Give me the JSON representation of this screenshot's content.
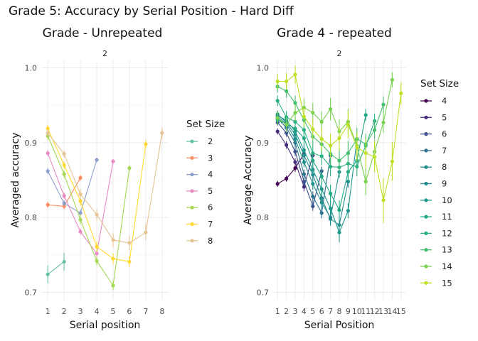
{
  "title": "Grade 5: Accuracy by Serial Position - Hard Diff",
  "chart_data": [
    {
      "type": "line",
      "title": "Grade - Unrepeated",
      "facet_label": "2",
      "xlabel": "Serial position",
      "ylabel": "Averaged accuracy",
      "xlim": [
        0.6,
        8.4
      ],
      "ylim": [
        0.69,
        1.01
      ],
      "x_ticks": [
        "1",
        "2",
        "3",
        "4",
        "5",
        "6",
        "7",
        "8"
      ],
      "y_ticks": [
        "0.7",
        "0.8",
        "0.9",
        "1.0"
      ],
      "legend_title": "Set Size",
      "series": [
        {
          "name": "2",
          "color": "#66c2a5",
          "x": [
            1,
            2
          ],
          "y": [
            0.724,
            0.741
          ],
          "err": [
            0.012,
            0.012
          ]
        },
        {
          "name": "3",
          "color": "#fc8d62",
          "x": [
            1,
            2,
            3
          ],
          "y": [
            0.817,
            0.815,
            0.853
          ],
          "err": [
            0.004,
            0.004,
            0.004
          ]
        },
        {
          "name": "4",
          "color": "#8da0cb",
          "x": [
            1,
            2,
            3,
            4
          ],
          "y": [
            0.862,
            0.819,
            0.806,
            0.877
          ],
          "err": [
            0.004,
            0.004,
            0.004,
            0.003
          ]
        },
        {
          "name": "5",
          "color": "#e78ac3",
          "x": [
            1,
            2,
            3,
            4,
            5
          ],
          "y": [
            0.886,
            0.829,
            0.781,
            0.752,
            0.875
          ],
          "err": [
            0.004,
            0.004,
            0.004,
            0.004,
            0.003
          ]
        },
        {
          "name": "6",
          "color": "#a6d854",
          "x": [
            1,
            2,
            3,
            4,
            5,
            6
          ],
          "y": [
            0.909,
            0.858,
            0.797,
            0.742,
            0.709,
            0.866
          ],
          "err": [
            0.005,
            0.005,
            0.006,
            0.006,
            0.006,
            0.004
          ]
        },
        {
          "name": "7",
          "color": "#ffd92f",
          "x": [
            1,
            2,
            3,
            4,
            5,
            6,
            7
          ],
          "y": [
            0.919,
            0.87,
            0.822,
            0.761,
            0.745,
            0.741,
            0.898
          ],
          "err": [
            0.005,
            0.005,
            0.006,
            0.007,
            0.007,
            0.007,
            0.005
          ]
        },
        {
          "name": "8",
          "color": "#e5c494",
          "x": [
            1,
            2,
            3,
            4,
            5,
            6,
            7,
            8
          ],
          "y": [
            0.913,
            0.885,
            0.831,
            0.804,
            0.77,
            0.766,
            0.78,
            0.913
          ],
          "err": [
            0.005,
            0.005,
            0.007,
            0.008,
            0.009,
            0.01,
            0.01,
            0.007
          ]
        }
      ]
    },
    {
      "type": "line",
      "title": "Grade 4 - repeated",
      "facet_label": "2",
      "xlabel": "Serial Position",
      "ylabel": "Average Accuracy",
      "xlim": [
        0.5,
        15.5
      ],
      "ylim": [
        0.69,
        1.01
      ],
      "x_ticks": [
        "1",
        "2",
        "3",
        "4",
        "5",
        "6",
        "7",
        "8",
        "9",
        "10",
        "11",
        "12",
        "13",
        "14",
        "15"
      ],
      "y_ticks": [
        "0.7",
        "0.8",
        "0.9",
        "1.0"
      ],
      "legend_title": "Set Size",
      "series": [
        {
          "name": "4",
          "color": "#440154",
          "x": [
            1,
            2,
            3,
            4
          ],
          "y": [
            0.845,
            0.852,
            0.866,
            0.885
          ],
          "err": [
            0.004,
            0.004,
            0.005,
            0.005
          ]
        },
        {
          "name": "5",
          "color": "#472d7b",
          "x": [
            1,
            2,
            3,
            4,
            5
          ],
          "y": [
            0.915,
            0.897,
            0.874,
            0.841,
            0.883
          ],
          "err": [
            0.004,
            0.005,
            0.005,
            0.006,
            0.005
          ]
        },
        {
          "name": "6",
          "color": "#3b518b",
          "x": [
            1,
            2,
            3,
            4,
            5,
            6
          ],
          "y": [
            0.927,
            0.913,
            0.888,
            0.848,
            0.815,
            0.862
          ],
          "err": [
            0.004,
            0.005,
            0.006,
            0.006,
            0.006,
            0.006
          ]
        },
        {
          "name": "7",
          "color": "#2c718e",
          "x": [
            1,
            2,
            3,
            4,
            5,
            6,
            7
          ],
          "y": [
            0.932,
            0.92,
            0.9,
            0.858,
            0.828,
            0.806,
            0.883
          ],
          "err": [
            0.005,
            0.006,
            0.006,
            0.006,
            0.007,
            0.007,
            0.006
          ]
        },
        {
          "name": "8",
          "color": "#21908d",
          "x": [
            1,
            2,
            3,
            4,
            5,
            6,
            7,
            8
          ],
          "y": [
            0.935,
            0.925,
            0.905,
            0.874,
            0.845,
            0.82,
            0.8,
            0.861
          ],
          "err": [
            0.005,
            0.006,
            0.006,
            0.007,
            0.008,
            0.008,
            0.008,
            0.007
          ]
        },
        {
          "name": "9",
          "color": "#238a8d",
          "x": [
            1,
            2,
            3,
            4,
            5,
            6,
            7,
            8,
            9
          ],
          "y": [
            0.938,
            0.927,
            0.911,
            0.883,
            0.857,
            0.826,
            0.798,
            0.79,
            0.848
          ],
          "err": [
            0.005,
            0.006,
            0.007,
            0.007,
            0.008,
            0.009,
            0.009,
            0.01,
            0.008
          ]
        },
        {
          "name": "10",
          "color": "#1f988b",
          "x": [
            1,
            2,
            3,
            4,
            5,
            6,
            7,
            8,
            9,
            10
          ],
          "y": [
            0.936,
            0.93,
            0.915,
            0.89,
            0.864,
            0.838,
            0.812,
            0.78,
            0.809,
            0.905
          ],
          "err": [
            0.006,
            0.007,
            0.007,
            0.008,
            0.009,
            0.01,
            0.01,
            0.013,
            0.01,
            0.009
          ]
        },
        {
          "name": "11",
          "color": "#22a884",
          "x": [
            1,
            2,
            3,
            4,
            5,
            6,
            7,
            8,
            9,
            10,
            11
          ],
          "y": [
            0.93,
            0.925,
            0.919,
            0.906,
            0.876,
            0.855,
            0.832,
            0.81,
            0.861,
            0.876,
            0.937
          ],
          "err": [
            0.006,
            0.007,
            0.008,
            0.009,
            0.01,
            0.011,
            0.012,
            0.013,
            0.012,
            0.011,
            0.008
          ]
        },
        {
          "name": "12",
          "color": "#2ab07f",
          "x": [
            1,
            2,
            3,
            4,
            5,
            6,
            7,
            8,
            9,
            10,
            11,
            12
          ],
          "y": [
            0.956,
            0.934,
            0.928,
            0.917,
            0.886,
            0.882,
            0.868,
            0.867,
            0.872,
            0.868,
            0.896,
            0.929
          ],
          "err": [
            0.007,
            0.008,
            0.009,
            0.01,
            0.011,
            0.012,
            0.013,
            0.014,
            0.014,
            0.013,
            0.011,
            0.01
          ]
        },
        {
          "name": "13",
          "color": "#44bf70",
          "x": [
            1,
            2,
            3,
            4,
            5,
            6,
            7,
            8,
            9,
            10,
            11,
            12,
            13
          ],
          "y": [
            0.975,
            0.969,
            0.953,
            0.93,
            0.908,
            0.898,
            0.885,
            0.876,
            0.886,
            0.905,
            0.898,
            0.917,
            0.951
          ],
          "err": [
            0.008,
            0.009,
            0.01,
            0.011,
            0.012,
            0.013,
            0.014,
            0.015,
            0.016,
            0.015,
            0.014,
            0.012,
            0.011
          ]
        },
        {
          "name": "14",
          "color": "#7ad151",
          "x": [
            1,
            2,
            3,
            4,
            5,
            6,
            7,
            8,
            9,
            10,
            11,
            12,
            13,
            14
          ],
          "y": [
            0.933,
            0.924,
            0.94,
            0.947,
            0.94,
            0.928,
            0.945,
            0.915,
            0.928,
            0.896,
            0.848,
            0.888,
            0.927,
            0.984
          ],
          "err": [
            0.009,
            0.01,
            0.011,
            0.012,
            0.013,
            0.014,
            0.015,
            0.016,
            0.017,
            0.018,
            0.018,
            0.016,
            0.014,
            0.01
          ]
        },
        {
          "name": "15",
          "color": "#bddf26",
          "x": [
            1,
            2,
            3,
            4,
            5,
            6,
            7,
            8,
            9,
            10,
            11,
            12,
            13,
            14,
            15
          ],
          "y": [
            0.982,
            0.982,
            0.991,
            0.935,
            0.918,
            0.905,
            0.896,
            0.906,
            0.924,
            0.894,
            0.886,
            0.881,
            0.823,
            0.875,
            0.966
          ],
          "err": [
            0.01,
            0.011,
            0.012,
            0.013,
            0.014,
            0.015,
            0.016,
            0.017,
            0.018,
            0.019,
            0.02,
            0.021,
            0.03,
            0.026,
            0.015
          ]
        }
      ]
    }
  ]
}
